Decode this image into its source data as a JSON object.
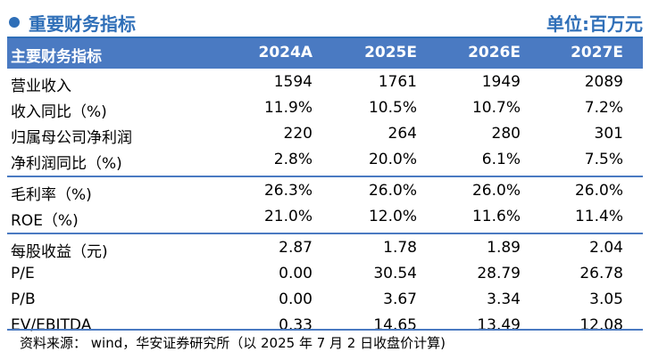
{
  "title": "重要财务指标",
  "unit": "单位:百万元",
  "header": {
    "label": "主要财务指标",
    "years": [
      "2024A",
      "2025E",
      "2026E",
      "2027E"
    ]
  },
  "rows": [
    {
      "label": "营业收入",
      "values": [
        "1594",
        "1761",
        "1949",
        "2089"
      ]
    },
    {
      "label": "收入同比（%)",
      "values": [
        "11.9%",
        "10.5%",
        "10.7%",
        "7.2%"
      ]
    },
    {
      "label": "归属母公司净利润",
      "values": [
        "220",
        "264",
        "280",
        "301"
      ]
    },
    {
      "label": "净利润同比（%)",
      "values": [
        "2.8%",
        "20.0%",
        "6.1%",
        "7.5%"
      ]
    },
    {
      "label": "毛利率（%)",
      "values": [
        "26.3%",
        "26.0%",
        "26.0%",
        "26.0%"
      ]
    },
    {
      "label": "ROE（%)",
      "values": [
        "21.0%",
        "12.0%",
        "11.6%",
        "11.4%"
      ]
    },
    {
      "label": "每股收益（元)",
      "values": [
        "2.87",
        "1.78",
        "1.89",
        "2.04"
      ]
    },
    {
      "label": "P/E",
      "values": [
        "0.00",
        "30.54",
        "28.79",
        "26.78"
      ]
    },
    {
      "label": "P/B",
      "values": [
        "0.00",
        "3.67",
        "3.34",
        "3.05"
      ]
    },
    {
      "label": "EV/EBITDA",
      "values": [
        "0.33",
        "14.65",
        "13.49",
        "12.08"
      ]
    }
  ],
  "source": "资料来源： wind，华安证券研究所（以 2025 年 7 月 2 日收盘价计算)",
  "colors": {
    "accent": "#2f6fb8",
    "header_bg": "#4a7ac2"
  }
}
